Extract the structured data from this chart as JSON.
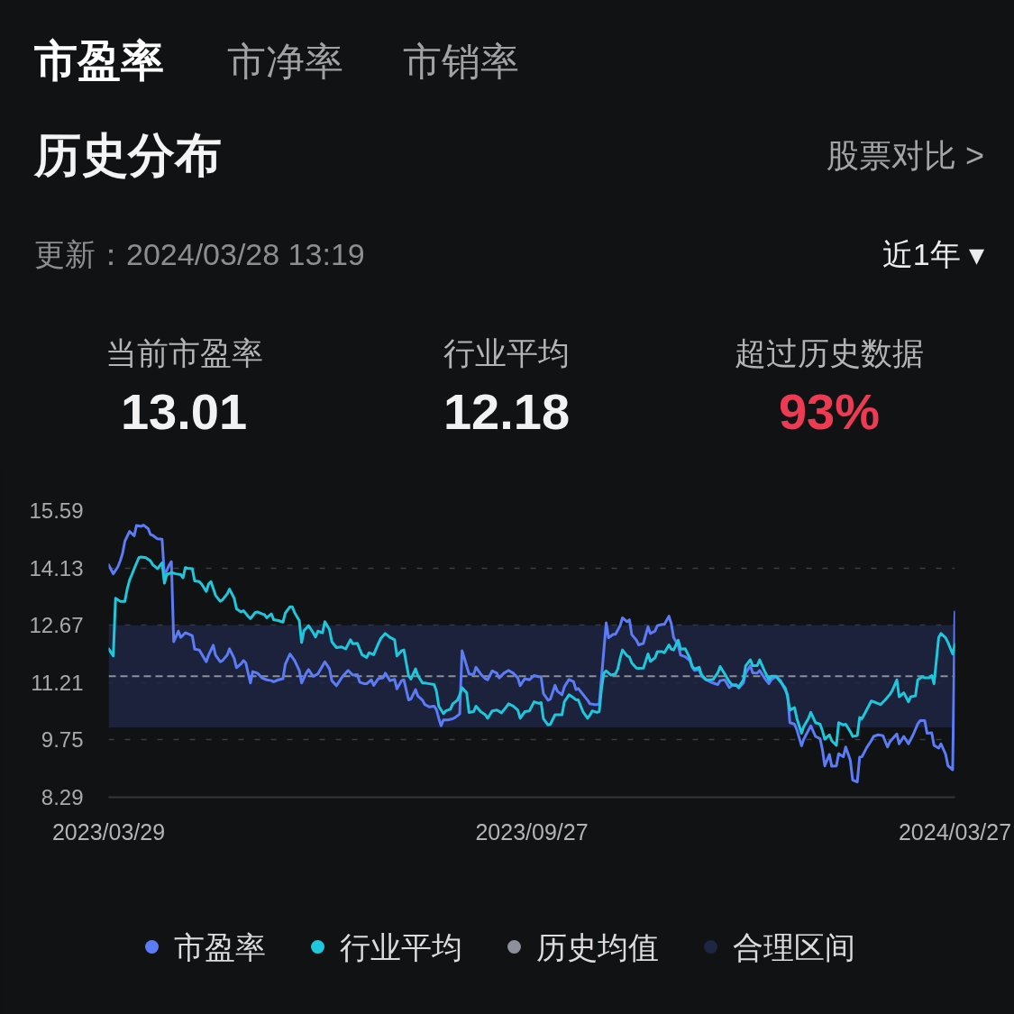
{
  "chart_data": {
    "type": "line",
    "title": "历史分布",
    "subtitle": "更新：2024/03/28 13:19",
    "annotations": [
      "市盈率",
      "市净率",
      "市销率",
      "股票对比 >",
      "近1年 ▾",
      "当前市盈率",
      "13.01",
      "行业平均",
      "12.18",
      "超过历史数据",
      "93%"
    ],
    "xlim": [
      "2023-03-29",
      "2024-03-27"
    ],
    "xticks": [
      {
        "value": "2023-03-29",
        "label": "2023/03/29"
      },
      {
        "value": "2023-09-27",
        "label": "2023/09/27"
      },
      {
        "value": "2024-03-27",
        "label": "2024/03/27"
      }
    ],
    "ylim": [
      8.29,
      15.59
    ],
    "yticks": [
      8.29,
      9.75,
      11.21,
      12.67,
      14.13,
      15.59
    ],
    "grid": "y",
    "legend": "bottom",
    "ref_lines": [
      {
        "axis": "y",
        "value": 11.37,
        "label": "历史均值",
        "color": "#8c909a",
        "line_style": "dashed"
      }
    ],
    "bands": [
      {
        "axis": "y",
        "from": 10.07,
        "to": 12.67,
        "label": "合理区间",
        "color": "#1e2643"
      }
    ],
    "series": [
      {
        "name": "市盈率",
        "color": "#5b7cf6",
        "x": [
          "2023-03-29",
          "2023-03-31",
          "2023-04-02",
          "2023-04-03",
          "2023-04-04",
          "2023-04-05",
          "2023-04-07",
          "2023-04-09",
          "2023-04-10",
          "2023-04-12",
          "2023-04-13",
          "2023-04-15",
          "2023-04-16",
          "2023-04-17",
          "2023-04-19",
          "2023-04-21",
          "2023-04-22",
          "2023-04-24",
          "2023-04-25",
          "2023-04-26",
          "2023-04-28",
          "2023-04-29",
          "2023-05-01",
          "2023-05-03",
          "2023-05-04",
          "2023-05-05",
          "2023-05-07",
          "2023-05-08",
          "2023-05-10",
          "2023-05-11",
          "2023-05-13",
          "2023-05-14",
          "2023-05-16",
          "2023-05-17",
          "2023-05-19",
          "2023-05-20",
          "2023-05-22",
          "2023-05-23",
          "2023-05-25",
          "2023-05-26",
          "2023-05-27",
          "2023-05-28",
          "2023-05-29",
          "2023-05-30",
          "2023-06-01",
          "2023-06-03",
          "2023-06-05",
          "2023-06-07",
          "2023-06-08",
          "2023-06-10",
          "2023-06-12",
          "2023-06-13",
          "2023-06-15",
          "2023-06-17",
          "2023-06-19",
          "2023-06-20",
          "2023-06-22",
          "2023-06-23",
          "2023-06-24",
          "2023-06-25",
          "2023-06-27",
          "2023-06-30",
          "2023-07-02",
          "2023-07-03",
          "2023-07-05",
          "2023-07-07",
          "2023-07-08",
          "2023-07-10",
          "2023-07-12",
          "2023-07-14",
          "2023-07-15",
          "2023-07-17",
          "2023-07-18",
          "2023-07-20",
          "2023-07-21",
          "2023-07-23",
          "2023-07-25",
          "2023-07-26",
          "2023-07-28",
          "2023-07-30",
          "2023-07-31",
          "2023-08-02",
          "2023-08-03",
          "2023-08-05",
          "2023-08-06",
          "2023-08-08",
          "2023-08-09",
          "2023-08-11",
          "2023-08-12",
          "2023-08-14",
          "2023-08-16",
          "2023-08-17",
          "2023-08-18",
          "2023-08-19",
          "2023-08-20",
          "2023-08-22",
          "2023-08-24",
          "2023-08-25",
          "2023-08-27",
          "2023-08-28",
          "2023-08-29",
          "2023-08-31",
          "2023-09-02",
          "2023-09-03",
          "2023-09-05",
          "2023-09-07",
          "2023-09-08",
          "2023-09-10",
          "2023-09-12",
          "2023-09-13",
          "2023-09-15",
          "2023-09-17",
          "2023-09-19",
          "2023-09-21",
          "2023-09-22",
          "2023-09-24",
          "2023-09-26",
          "2023-09-28",
          "2023-09-30",
          "2023-10-01",
          "2023-10-02",
          "2023-10-04",
          "2023-10-05",
          "2023-10-07",
          "2023-10-08",
          "2023-10-10",
          "2023-10-11",
          "2023-10-13",
          "2023-10-15",
          "2023-10-16",
          "2023-10-17",
          "2023-10-19",
          "2023-10-21",
          "2023-10-22",
          "2023-10-24",
          "2023-10-25",
          "2023-10-26",
          "2023-10-29",
          "2023-10-30",
          "2023-11-01",
          "2023-11-02",
          "2023-11-04",
          "2023-11-05",
          "2023-11-07",
          "2023-11-08",
          "2023-11-09",
          "2023-11-11",
          "2023-11-12",
          "2023-11-14",
          "2023-11-16",
          "2023-11-17",
          "2023-11-19",
          "2023-11-20",
          "2023-11-22",
          "2023-11-23",
          "2023-11-25",
          "2023-11-26",
          "2023-11-27",
          "2023-11-29",
          "2023-11-30",
          "2023-12-02",
          "2023-12-04",
          "2023-12-05",
          "2023-12-06",
          "2023-12-08",
          "2023-12-09",
          "2023-12-11",
          "2023-12-13",
          "2023-12-14",
          "2023-12-16",
          "2023-12-17",
          "2023-12-19",
          "2023-12-21",
          "2023-12-22",
          "2023-12-24",
          "2023-12-25",
          "2023-12-27",
          "2023-12-28",
          "2023-12-30",
          "2023-12-31",
          "2024-01-02",
          "2024-01-03",
          "2024-01-05",
          "2024-01-07",
          "2024-01-08",
          "2024-01-10",
          "2024-01-12",
          "2024-01-13",
          "2024-01-15",
          "2024-01-16",
          "2024-01-18",
          "2024-01-19",
          "2024-01-21",
          "2024-01-22",
          "2024-01-24",
          "2024-01-25",
          "2024-01-27",
          "2024-01-29",
          "2024-01-30",
          "2024-01-31",
          "2024-02-02",
          "2024-02-03",
          "2024-02-05",
          "2024-02-06",
          "2024-02-08",
          "2024-02-09",
          "2024-02-11",
          "2024-02-12",
          "2024-02-14",
          "2024-02-15",
          "2024-02-16",
          "2024-02-18",
          "2024-02-20",
          "2024-02-21",
          "2024-02-23",
          "2024-02-25",
          "2024-02-27",
          "2024-02-28",
          "2024-03-02",
          "2024-03-03",
          "2024-03-05",
          "2024-03-07",
          "2024-03-09",
          "2024-03-11",
          "2024-03-12",
          "2024-03-14",
          "2024-03-15",
          "2024-03-17",
          "2024-03-18",
          "2024-03-20",
          "2024-03-21",
          "2024-03-23",
          "2024-03-24",
          "2024-03-26",
          "2024-03-27"
        ],
        "values": [
          14.21,
          13.98,
          14.16,
          14.31,
          14.5,
          14.81,
          15.06,
          14.95,
          15.21,
          15.19,
          15.22,
          15.13,
          14.98,
          14.96,
          14.87,
          14.86,
          13.93,
          14.2,
          14.29,
          12.25,
          12.52,
          12.36,
          12.48,
          12.43,
          12.4,
          12.06,
          12.04,
          11.94,
          11.74,
          11.91,
          12.16,
          11.91,
          11.74,
          11.77,
          11.91,
          12.07,
          11.83,
          11.59,
          11.69,
          11.77,
          11.71,
          11.45,
          11.2,
          11.49,
          11.45,
          11.33,
          11.28,
          11.26,
          11.23,
          11.28,
          11.31,
          11.68,
          11.94,
          11.77,
          11.52,
          11.2,
          11.45,
          11.54,
          11.45,
          11.37,
          11.43,
          11.74,
          11.56,
          11.26,
          11.13,
          11.31,
          11.39,
          11.52,
          11.4,
          11.41,
          11.22,
          11.18,
          11.18,
          11.28,
          11.14,
          11.31,
          11.33,
          11.45,
          11.26,
          11.29,
          11.05,
          11.26,
          11.28,
          10.77,
          10.79,
          11.03,
          10.87,
          10.76,
          10.65,
          10.59,
          10.61,
          10.52,
          10.3,
          10.11,
          10.26,
          10.26,
          10.29,
          10.32,
          10.41,
          12.02,
          11.83,
          11.43,
          11.41,
          11.6,
          11.43,
          11.31,
          11.28,
          11.51,
          11.45,
          11.33,
          11.45,
          11.52,
          11.45,
          11.33,
          11.13,
          11.31,
          11.28,
          11.39,
          11.36,
          11.36,
          10.93,
          10.76,
          10.79,
          11.14,
          10.99,
          10.9,
          11.1,
          11.29,
          11.23,
          11.03,
          11.06,
          10.91,
          10.76,
          10.67,
          10.65,
          10.65,
          10.66,
          12.73,
          12.35,
          12.44,
          12.44,
          12.66,
          12.86,
          12.76,
          12.81,
          12.43,
          12.29,
          12.17,
          12.21,
          12.63,
          12.46,
          12.52,
          12.66,
          12.69,
          12.69,
          12.9,
          12.71,
          12.36,
          12.15,
          11.91,
          11.87,
          11.77,
          11.6,
          11.52,
          11.54,
          11.37,
          11.28,
          11.22,
          11.2,
          11.16,
          11.26,
          11.28,
          11.08,
          11.13,
          11.16,
          11.07,
          11.2,
          11.45,
          11.64,
          11.46,
          11.45,
          11.52,
          11.33,
          11.18,
          11.28,
          11.37,
          11.26,
          11.13,
          10.91,
          10.19,
          10.15,
          10.01,
          9.6,
          9.77,
          10.0,
          10.11,
          9.84,
          9.78,
          9.5,
          9.09,
          9.38,
          9.08,
          9.09,
          9.4,
          9.32,
          9.57,
          9.23,
          8.73,
          8.68,
          9.31,
          9.32,
          9.55,
          9.73,
          9.84,
          9.88,
          9.86,
          9.57,
          9.7,
          9.9,
          9.65,
          9.84,
          9.65,
          9.88,
          10.16,
          10.24,
          10.24,
          9.92,
          9.93,
          9.61,
          9.54,
          9.65,
          9.38,
          9.09,
          8.99,
          13.01
        ]
      },
      {
        "name": "行业平均",
        "color": "#1ec8dc",
        "x": [
          "2023-03-29",
          "2023-03-31",
          "2023-04-01",
          "2023-04-03",
          "2023-04-05",
          "2023-04-06",
          "2023-04-07",
          "2023-04-08",
          "2023-04-09",
          "2023-04-11",
          "2023-04-12",
          "2023-04-14",
          "2023-04-16",
          "2023-04-17",
          "2023-04-19",
          "2023-04-21",
          "2023-04-22",
          "2023-04-23",
          "2023-04-25",
          "2023-04-27",
          "2023-04-29",
          "2023-04-30",
          "2023-05-01",
          "2023-05-02",
          "2023-05-04",
          "2023-05-05",
          "2023-05-07",
          "2023-05-08",
          "2023-05-10",
          "2023-05-11",
          "2023-05-12",
          "2023-05-14",
          "2023-05-16",
          "2023-05-17",
          "2023-05-19",
          "2023-05-20",
          "2023-05-22",
          "2023-05-23",
          "2023-05-25",
          "2023-05-26",
          "2023-05-28",
          "2023-05-29",
          "2023-05-31",
          "2023-06-01",
          "2023-06-03",
          "2023-06-04",
          "2023-06-05",
          "2023-06-07",
          "2023-06-08",
          "2023-06-10",
          "2023-06-12",
          "2023-06-13",
          "2023-06-15",
          "2023-06-16",
          "2023-06-17",
          "2023-06-19",
          "2023-06-20",
          "2023-06-21",
          "2023-06-23",
          "2023-06-25",
          "2023-06-26",
          "2023-06-27",
          "2023-06-29",
          "2023-06-30",
          "2023-07-02",
          "2023-07-03",
          "2023-07-05",
          "2023-07-07",
          "2023-07-09",
          "2023-07-11",
          "2023-07-12",
          "2023-07-14",
          "2023-07-15",
          "2023-07-16",
          "2023-07-18",
          "2023-07-19",
          "2023-07-21",
          "2023-07-23",
          "2023-07-24",
          "2023-07-26",
          "2023-07-28",
          "2023-07-30",
          "2023-07-31",
          "2023-08-02",
          "2023-08-03",
          "2023-08-05",
          "2023-08-06",
          "2023-08-08",
          "2023-08-09",
          "2023-08-11",
          "2023-08-12",
          "2023-08-14",
          "2023-08-16",
          "2023-08-17",
          "2023-08-18",
          "2023-08-20",
          "2023-08-21",
          "2023-08-23",
          "2023-08-24",
          "2023-08-26",
          "2023-08-27",
          "2023-08-28",
          "2023-08-30",
          "2023-08-31",
          "2023-09-02",
          "2023-09-03",
          "2023-09-05",
          "2023-09-07",
          "2023-09-08",
          "2023-09-10",
          "2023-09-12",
          "2023-09-14",
          "2023-09-16",
          "2023-09-17",
          "2023-09-19",
          "2023-09-21",
          "2023-09-22",
          "2023-09-24",
          "2023-09-26",
          "2023-09-28",
          "2023-09-30",
          "2023-10-01",
          "2023-10-02",
          "2023-10-04",
          "2023-10-05",
          "2023-10-07",
          "2023-10-08",
          "2023-10-10",
          "2023-10-11",
          "2023-10-13",
          "2023-10-15",
          "2023-10-16",
          "2023-10-17",
          "2023-10-19",
          "2023-10-21",
          "2023-10-22",
          "2023-10-23",
          "2023-10-25",
          "2023-10-26",
          "2023-10-27",
          "2023-10-28",
          "2023-10-29",
          "2023-10-31",
          "2023-11-02",
          "2023-11-03",
          "2023-11-04",
          "2023-11-05",
          "2023-11-07",
          "2023-11-08",
          "2023-11-09",
          "2023-11-11",
          "2023-11-12",
          "2023-11-14",
          "2023-11-16",
          "2023-11-17",
          "2023-11-19",
          "2023-11-20",
          "2023-11-22",
          "2023-11-23",
          "2023-11-25",
          "2023-11-26",
          "2023-11-27",
          "2023-11-29",
          "2023-11-30",
          "2023-12-02",
          "2023-12-04",
          "2023-12-05",
          "2023-12-06",
          "2023-12-08",
          "2023-12-09",
          "2023-12-11",
          "2023-12-13",
          "2023-12-14",
          "2023-12-16",
          "2023-12-17",
          "2023-12-19",
          "2023-12-21",
          "2023-12-22",
          "2023-12-24",
          "2023-12-25",
          "2023-12-27",
          "2023-12-28",
          "2023-12-30",
          "2023-12-31",
          "2024-01-02",
          "2024-01-03",
          "2024-01-05",
          "2024-01-07",
          "2024-01-08",
          "2024-01-10",
          "2024-01-12",
          "2024-01-14",
          "2024-01-15",
          "2024-01-16",
          "2024-01-18",
          "2024-01-19",
          "2024-01-21",
          "2024-01-22",
          "2024-01-24",
          "2024-01-25",
          "2024-01-27",
          "2024-01-29",
          "2024-01-30",
          "2024-01-31",
          "2024-02-02",
          "2024-02-03",
          "2024-02-05",
          "2024-02-06",
          "2024-02-08",
          "2024-02-09",
          "2024-02-11",
          "2024-02-12",
          "2024-02-14",
          "2024-02-15",
          "2024-02-16",
          "2024-02-18",
          "2024-02-20",
          "2024-02-22",
          "2024-02-24",
          "2024-02-26",
          "2024-02-28",
          "2024-02-29",
          "2024-03-02",
          "2024-03-03",
          "2024-03-05",
          "2024-03-07",
          "2024-03-08",
          "2024-03-10",
          "2024-03-11",
          "2024-03-13",
          "2024-03-14",
          "2024-03-16",
          "2024-03-17",
          "2024-03-18",
          "2024-03-20",
          "2024-03-21",
          "2024-03-23",
          "2024-03-24",
          "2024-03-26",
          "2024-03-27"
        ],
        "values": [
          12.07,
          11.89,
          13.36,
          13.28,
          13.28,
          13.59,
          13.82,
          13.96,
          14.11,
          14.39,
          14.41,
          14.39,
          14.31,
          14.21,
          14.11,
          14.26,
          13.74,
          13.96,
          14.01,
          13.98,
          13.96,
          13.88,
          14.14,
          14.12,
          14.11,
          13.8,
          13.78,
          13.72,
          13.53,
          13.72,
          13.78,
          13.43,
          13.28,
          13.32,
          13.47,
          13.59,
          13.36,
          13.09,
          13.01,
          13.04,
          12.9,
          12.84,
          12.99,
          13.01,
          12.96,
          12.94,
          12.86,
          12.96,
          12.81,
          12.79,
          12.75,
          12.98,
          13.14,
          13.14,
          12.99,
          12.79,
          12.23,
          12.53,
          12.66,
          12.48,
          12.37,
          12.52,
          12.48,
          12.76,
          12.56,
          12.25,
          12.1,
          12.12,
          12.07,
          12.3,
          12.2,
          12.21,
          12.06,
          11.92,
          11.85,
          11.97,
          11.92,
          12.2,
          12.33,
          12.46,
          12.36,
          12.3,
          11.89,
          12.02,
          12.04,
          11.39,
          11.3,
          11.56,
          11.39,
          11.2,
          11.2,
          11.18,
          11.16,
          10.99,
          10.61,
          10.42,
          10.49,
          10.53,
          10.67,
          10.76,
          10.9,
          11.08,
          10.95,
          10.45,
          10.47,
          10.61,
          10.47,
          10.39,
          10.3,
          10.49,
          10.51,
          10.44,
          10.59,
          10.67,
          10.61,
          10.51,
          10.3,
          10.47,
          10.49,
          10.72,
          10.68,
          10.7,
          10.29,
          10.13,
          10.15,
          10.39,
          10.39,
          10.39,
          10.72,
          10.9,
          10.82,
          10.77,
          10.77,
          10.47,
          10.3,
          10.38,
          10.49,
          10.45,
          10.47,
          11.06,
          11.45,
          11.51,
          11.4,
          11.43,
          11.56,
          11.83,
          12.04,
          11.89,
          11.86,
          11.71,
          11.58,
          11.57,
          11.58,
          11.94,
          11.75,
          11.84,
          12.0,
          12.0,
          11.97,
          12.17,
          12.06,
          12.04,
          12.29,
          12.06,
          12.07,
          11.83,
          11.62,
          11.56,
          11.6,
          11.41,
          11.28,
          11.28,
          11.29,
          11.46,
          11.62,
          11.43,
          11.23,
          11.16,
          11.13,
          11.1,
          11.28,
          11.64,
          11.79,
          11.64,
          11.64,
          11.79,
          11.52,
          11.28,
          11.37,
          11.37,
          11.23,
          11.07,
          10.85,
          10.51,
          10.57,
          10.3,
          9.92,
          10.09,
          10.3,
          10.45,
          10.19,
          10.15,
          9.98,
          9.77,
          9.88,
          9.73,
          9.61,
          10.19,
          10.13,
          10.15,
          9.96,
          9.84,
          9.86,
          10.32,
          10.29,
          10.51,
          10.74,
          10.7,
          10.65,
          10.77,
          10.91,
          11.0,
          11.28,
          10.85,
          10.95,
          10.72,
          10.85,
          10.87,
          11.28,
          11.36,
          11.33,
          11.33,
          11.39,
          11.18,
          12.36,
          12.46,
          12.35,
          12.23,
          11.94,
          12.18
        ]
      }
    ]
  }
}
